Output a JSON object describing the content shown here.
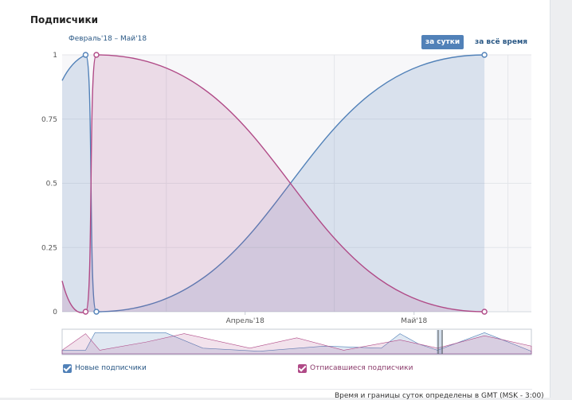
{
  "section_title": "Подписчики",
  "period_label": "Февраль'18 – Май'18",
  "buttons": {
    "per_day": "за сутки",
    "all_time": "за всё время"
  },
  "legend": {
    "new": "Новые подписчики",
    "unsubscribed": "Отписавшиеся подписчики"
  },
  "footnote": "Время и границы суток определены в GMT (MSK - 3:00)",
  "colors": {
    "new": "#5181b8",
    "unsubscribed": "#b04a87",
    "accent": "#5181b8"
  },
  "chart_data": {
    "type": "area",
    "y_ticks": [
      "0",
      "0.25",
      "0.5",
      "0.75",
      "1"
    ],
    "x_tick_labels": [
      "Апрель'18",
      "Май'18"
    ],
    "ylim": [
      0,
      1
    ],
    "grid": true,
    "series": [
      {
        "name": "Новые подписчики",
        "points": [
          [
            0,
            0.9
          ],
          [
            0.05,
            1
          ],
          [
            0.073,
            0
          ],
          [
            0.9,
            1
          ]
        ]
      },
      {
        "name": "Отписавшиеся подписчики",
        "points": [
          [
            0,
            0.12
          ],
          [
            0.05,
            0
          ],
          [
            0.073,
            1
          ],
          [
            0.9,
            0
          ]
        ]
      }
    ]
  }
}
